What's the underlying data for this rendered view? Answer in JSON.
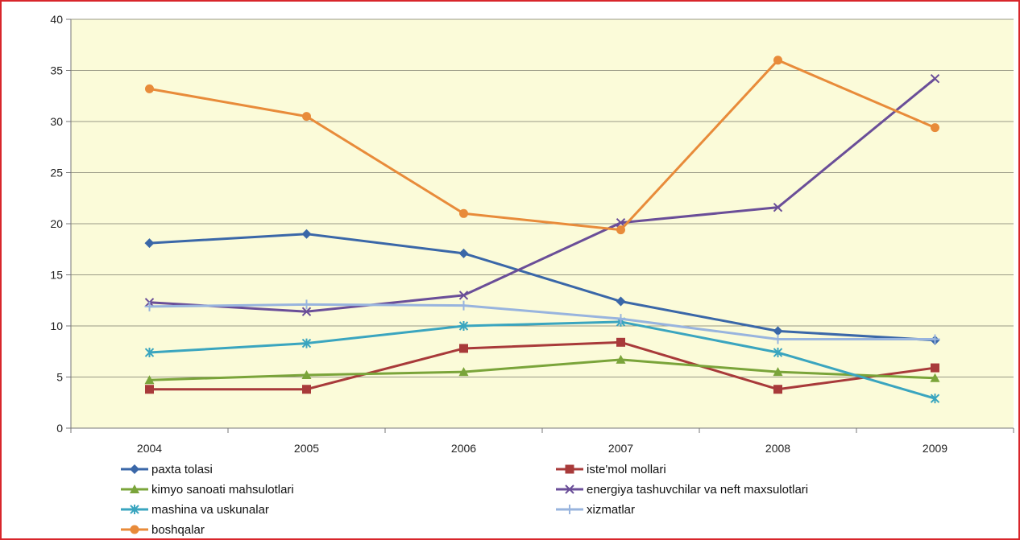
{
  "chart_data": {
    "type": "line",
    "title": "",
    "xlabel": "",
    "ylabel": "",
    "x": [
      "2004",
      "2005",
      "2006",
      "2007",
      "2008",
      "2009"
    ],
    "ylim": [
      0,
      40
    ],
    "yticks": [
      0,
      5,
      10,
      15,
      20,
      25,
      30,
      35,
      40
    ],
    "grid": true,
    "legend_position": "bottom",
    "plot_background": "#fbfbd9",
    "series": [
      {
        "name": "paxta tolasi",
        "values": [
          18.1,
          19.0,
          17.1,
          12.4,
          9.5,
          8.6
        ],
        "color": "#3a67a8",
        "marker": "diamond"
      },
      {
        "name": "iste'mol mollari",
        "values": [
          3.8,
          3.8,
          7.8,
          8.4,
          3.8,
          5.9
        ],
        "color": "#a83a3a",
        "marker": "square"
      },
      {
        "name": "kimyo sanoati mahsulotlari",
        "values": [
          4.7,
          5.2,
          5.5,
          6.7,
          5.5,
          4.9
        ],
        "color": "#7aa43a",
        "marker": "triangle"
      },
      {
        "name": "energiya tashuvchilar va neft maxsulotlari",
        "values": [
          12.3,
          11.4,
          13.0,
          20.1,
          21.6,
          34.2
        ],
        "color": "#6a4e98",
        "marker": "x"
      },
      {
        "name": "mashina va uskunalar",
        "values": [
          7.4,
          8.3,
          10.0,
          10.4,
          7.4,
          2.9
        ],
        "color": "#3aa5bf",
        "marker": "star"
      },
      {
        "name": "xizmatlar",
        "values": [
          11.9,
          12.1,
          12.0,
          10.7,
          8.7,
          8.7
        ],
        "color": "#98b4de",
        "marker": "plus"
      },
      {
        "name": "boshqalar",
        "values": [
          33.2,
          30.5,
          21.0,
          19.4,
          36.0,
          29.4
        ],
        "color": "#e88b3a",
        "marker": "circle"
      }
    ]
  }
}
